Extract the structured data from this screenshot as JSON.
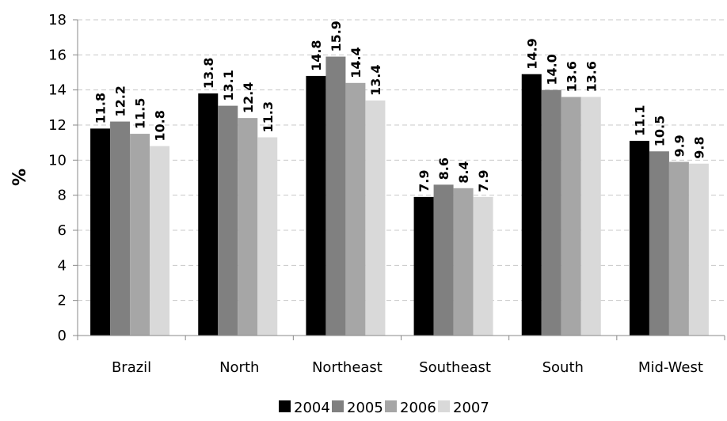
{
  "chart_data": {
    "type": "bar",
    "title": "",
    "xlabel": "",
    "ylabel": "%",
    "ylim": [
      0,
      18
    ],
    "yticks": [
      0,
      2,
      4,
      6,
      8,
      10,
      12,
      14,
      16,
      18
    ],
    "grid": "horizontal-dashed",
    "legend_position": "bottom",
    "categories": [
      "Brazil",
      "North",
      "Northeast",
      "Southeast",
      "South",
      "Mid-West"
    ],
    "series": [
      {
        "name": "2004",
        "color": "#000000",
        "values": [
          11.8,
          13.8,
          14.8,
          7.9,
          14.9,
          11.1
        ]
      },
      {
        "name": "2005",
        "color": "#808080",
        "values": [
          12.2,
          13.1,
          15.9,
          8.6,
          14.0,
          10.5
        ]
      },
      {
        "name": "2006",
        "color": "#a6a6a6",
        "values": [
          11.5,
          12.4,
          14.4,
          8.4,
          13.6,
          9.9
        ]
      },
      {
        "name": "2007",
        "color": "#d9d9d9",
        "values": [
          10.8,
          11.3,
          13.4,
          7.9,
          13.6,
          9.8
        ]
      }
    ]
  }
}
